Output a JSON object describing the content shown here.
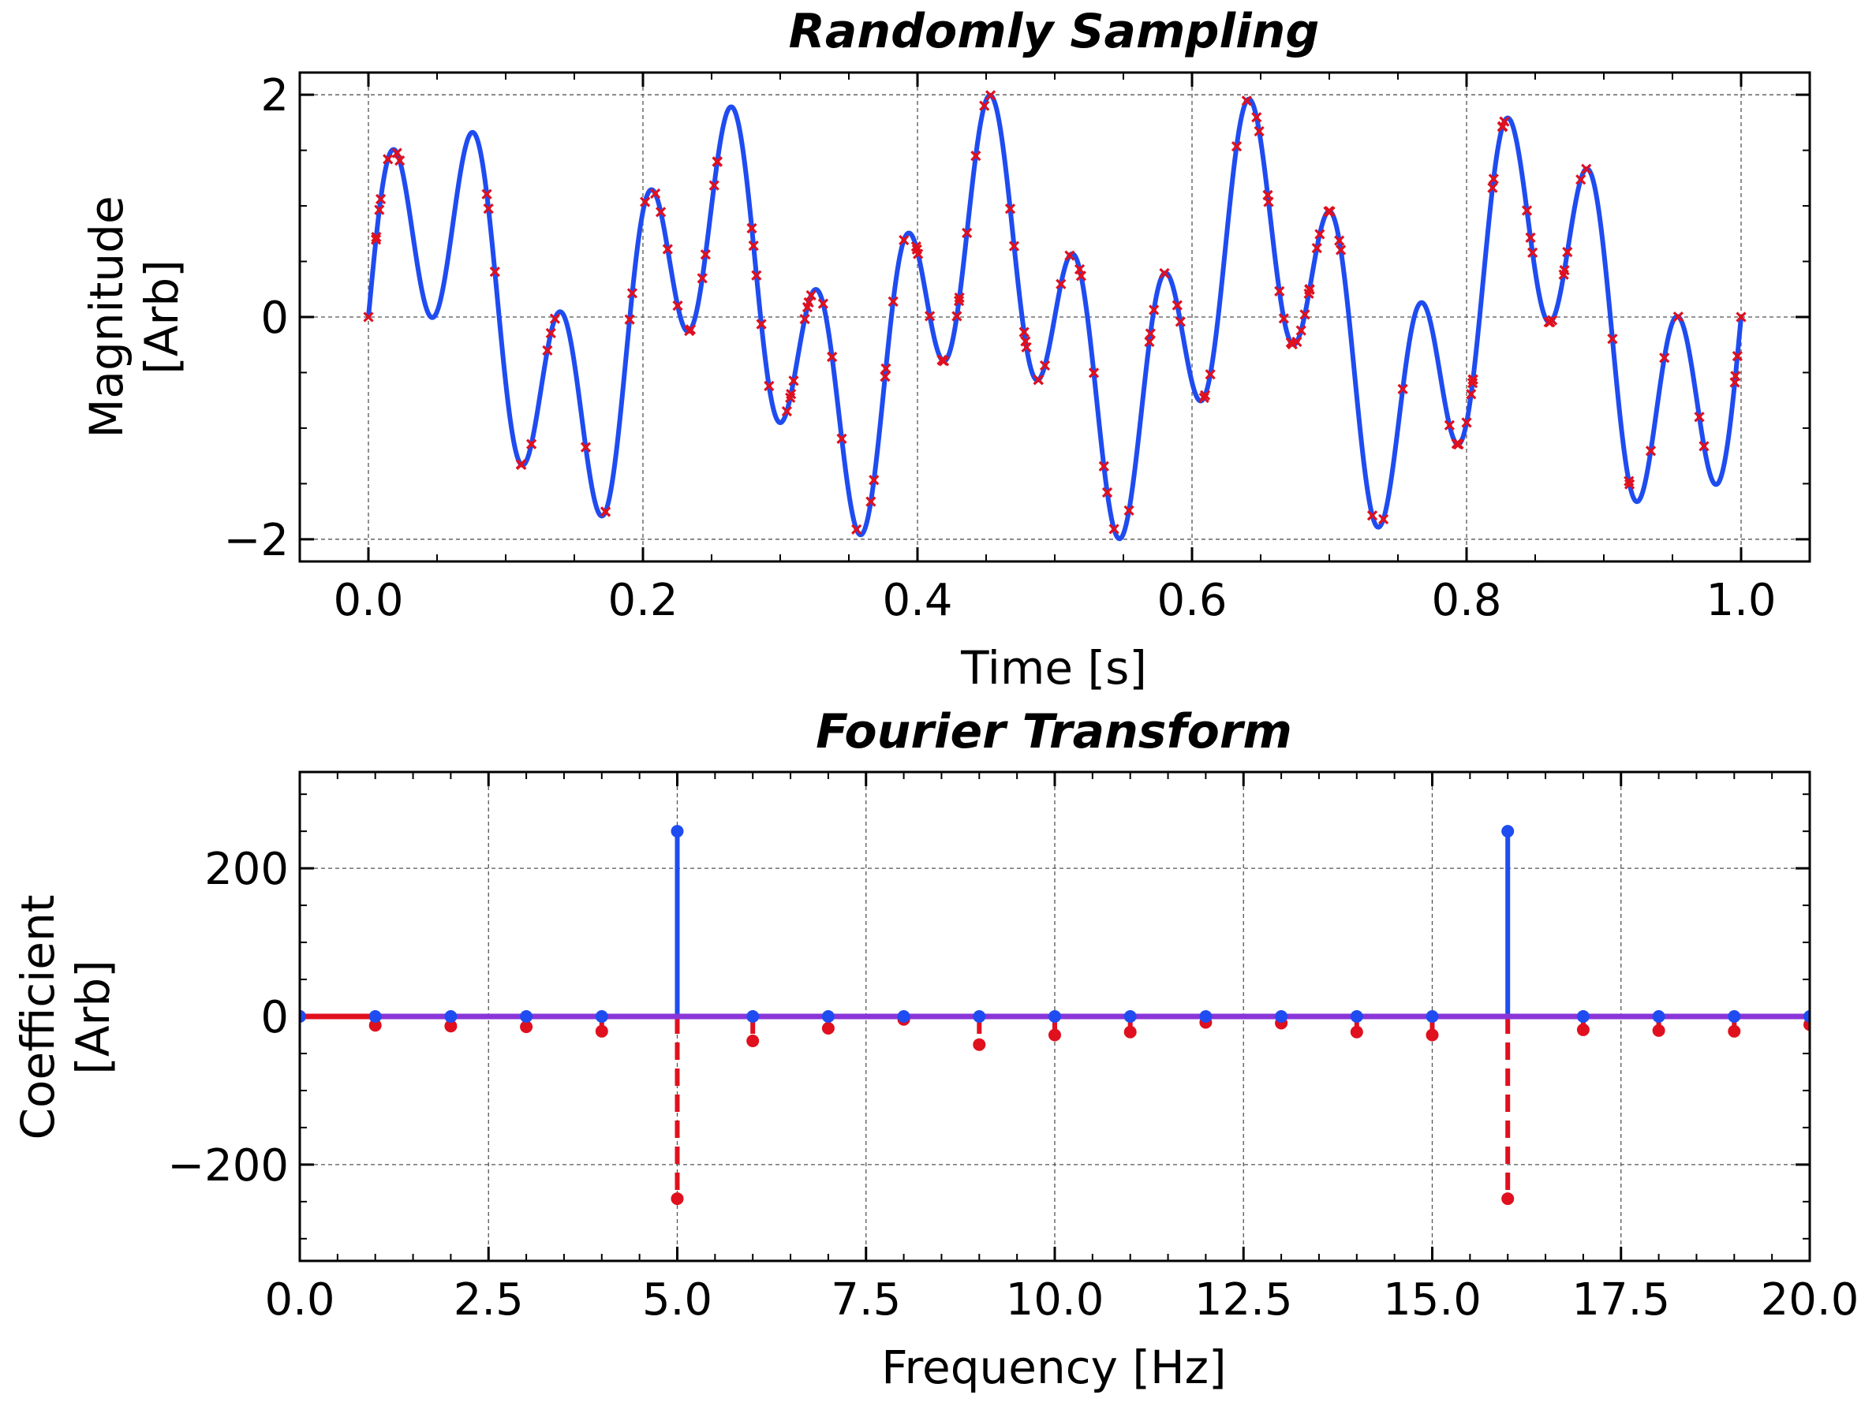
{
  "colors": {
    "signal": "#1f4cf0",
    "sample": "#e0101e",
    "real": "#1f4cf0",
    "imag": "#e0101e",
    "baseline": "#8a35d8",
    "grid": "#555555"
  },
  "chart_data": [
    {
      "type": "line",
      "title": "Randomly Sampling",
      "xlabel": "Time [s]",
      "ylabel_lines": [
        "Magnitude",
        "[Arb]"
      ],
      "xlim": [
        -0.05,
        1.05
      ],
      "ylim": [
        -2.2,
        2.2
      ],
      "x_ticks": [
        0.0,
        0.2,
        0.4,
        0.6,
        0.8,
        1.0
      ],
      "x_tick_labels": [
        "0.0",
        "0.2",
        "0.4",
        "0.6",
        "0.8",
        "1.0"
      ],
      "y_ticks": [
        -2,
        0,
        2
      ],
      "y_tick_labels": [
        "−2",
        "0",
        "2"
      ],
      "grid": true,
      "series": [
        {
          "kind": "curve",
          "function": "sin(2*pi*5*t) + sin(2*pi*16*t)",
          "x_range": [
            0,
            1
          ],
          "component_frequencies_hz": [
            5,
            16
          ]
        },
        {
          "kind": "markers",
          "marker": "x",
          "count": 160,
          "x_range": [
            0,
            1
          ],
          "on": "curve"
        }
      ]
    },
    {
      "type": "stem",
      "title": "Fourier Transform",
      "xlabel": "Frequency [Hz]",
      "ylabel_lines": [
        "Coefficient",
        "[Arb]"
      ],
      "xlim": [
        0,
        20
      ],
      "ylim": [
        -330,
        330
      ],
      "x_ticks": [
        0,
        2.5,
        5,
        7.5,
        10,
        12.5,
        15,
        17.5,
        20
      ],
      "x_tick_labels": [
        "0.0",
        "2.5",
        "5.0",
        "7.5",
        "10.0",
        "12.5",
        "15.0",
        "17.5",
        "20.0"
      ],
      "y_ticks": [
        -200,
        0,
        200
      ],
      "y_tick_labels": [
        "−200",
        "0",
        "200"
      ],
      "grid": true,
      "x": [
        0,
        1,
        2,
        3,
        4,
        5,
        6,
        7,
        8,
        9,
        10,
        11,
        12,
        13,
        14,
        15,
        16,
        17,
        18,
        19,
        20
      ],
      "series": [
        {
          "component": "real",
          "line_style": "solid",
          "values": [
            0,
            0,
            0,
            0,
            0,
            250,
            0,
            0,
            0,
            0,
            0,
            0,
            0,
            0,
            0,
            0,
            250,
            0,
            0,
            0,
            0
          ]
        },
        {
          "component": "imaginary",
          "line_style": "dashed",
          "values": [
            0,
            -12,
            -13,
            -14,
            -20,
            -246,
            -33,
            -16,
            -4,
            -38,
            -25,
            -21,
            -8,
            -9,
            -21,
            -25,
            -246,
            -18,
            -19,
            -20,
            -11
          ]
        }
      ]
    }
  ]
}
